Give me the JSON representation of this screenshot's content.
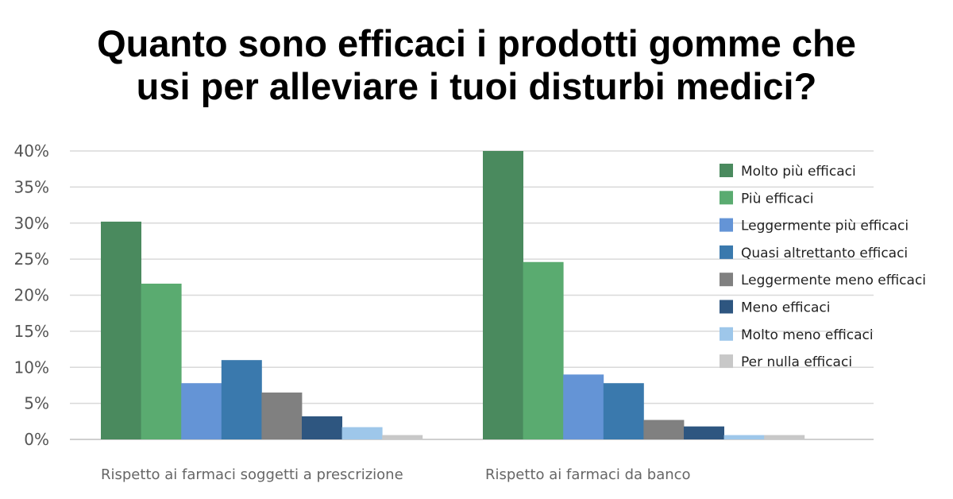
{
  "title": {
    "line1": "Quanto sono efficaci i prodotti gomme che",
    "line2": "usi per alleviare i tuoi disturbi medici?"
  },
  "chart_data": {
    "type": "bar",
    "title": "Quanto sono efficaci i prodotti gomme che usi per alleviare i tuoi disturbi medici?",
    "categories": [
      "Rispetto ai farmaci soggetti a prescrizione",
      "Rispetto ai farmaci da banco"
    ],
    "series": [
      {
        "name": "Molto più efficaci",
        "color": "#4a8a5e",
        "values": [
          30.2,
          40
        ]
      },
      {
        "name": "Più efficaci",
        "color": "#5aab70",
        "values": [
          21.6,
          24.6
        ]
      },
      {
        "name": "Leggermente più efficaci",
        "color": "#6494d6",
        "values": [
          7.8,
          9
        ]
      },
      {
        "name": "Quasi altrettanto efficaci",
        "color": "#3a79ad",
        "values": [
          11,
          7.8
        ]
      },
      {
        "name": "Leggermente meno efficaci",
        "color": "#808080",
        "values": [
          6.5,
          2.7
        ]
      },
      {
        "name": "Meno efficaci",
        "color": "#2e5680",
        "values": [
          3.2,
          1.8
        ]
      },
      {
        "name": "Molto meno efficaci",
        "color": "#9ec7ea",
        "values": [
          1.7,
          0.6
        ]
      },
      {
        "name": "Per nulla efficaci",
        "color": "#c8c8c8",
        "values": [
          0.6,
          0.6
        ]
      }
    ],
    "yticks": [
      "0%",
      "5%",
      "10%",
      "15%",
      "20%",
      "25%",
      "30%",
      "35%",
      "40%"
    ],
    "ylim": [
      0,
      40
    ],
    "ylabel": "",
    "xlabel": "",
    "grid": true,
    "legend": "right"
  }
}
